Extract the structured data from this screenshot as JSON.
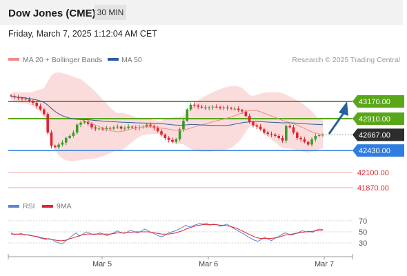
{
  "header": {
    "title": "Dow Jones (CME)",
    "timeframe": "30 MIN"
  },
  "datetime": "Friday, March 7, 2025 1:12:04 AM CET",
  "legend": {
    "ma20": "MA 20 + Bollinger Bands",
    "ma50": "MA 50",
    "source": "Research © 2025 Trading Central",
    "rsi": "RSI",
    "ma9": "9MA"
  },
  "colors": {
    "up": "#3a9b2a",
    "down": "#e0242c",
    "ma20": "#f08a8a",
    "ma50": "#2a5f9e",
    "bb_fill": "#fbdcdc",
    "resistance": "#5aa619",
    "support": "#2f7de1",
    "lower_level": "#f2a0a0",
    "arrow": "#2a5f9e",
    "current": "#2d2d2d",
    "rsi": "#5a84d8",
    "rsi_ma": "#e0242c"
  },
  "chart_data": [
    {
      "type": "candlestick",
      "ylim": [
        41700,
        43370
      ],
      "x_ticks": [
        "Mar 5",
        "Mar 6",
        "Mar 7"
      ],
      "levels": [
        {
          "value": 43170,
          "label": "43170.00",
          "kind": "resistance"
        },
        {
          "value": 42910,
          "label": "42910.00",
          "kind": "resistance"
        },
        {
          "value": 42667,
          "label": "42667.00",
          "kind": "current"
        },
        {
          "value": 42430,
          "label": "42430.00",
          "kind": "support"
        },
        {
          "value": 42100,
          "label": "42100.00",
          "kind": "lower"
        },
        {
          "value": 41870,
          "label": "41870.00",
          "kind": "lower"
        }
      ],
      "close_series": [
        43250,
        43230,
        43220,
        43210,
        43200,
        43180,
        43150,
        43100,
        43050,
        42980,
        42700,
        42500,
        42480,
        42520,
        42550,
        42620,
        42650,
        42700,
        42820,
        42850,
        42870,
        42830,
        42780,
        42760,
        42760,
        42750,
        42770,
        42760,
        42780,
        42790,
        42760,
        42770,
        42790,
        42780,
        42770,
        42780,
        42790,
        42820,
        42800,
        42770,
        42720,
        42670,
        42620,
        42590,
        42560,
        42600,
        42750,
        42880,
        43050,
        43120,
        43110,
        43090,
        43080,
        43070,
        43080,
        43090,
        43085,
        43070,
        43080,
        43070,
        43060,
        43060,
        43040,
        43020,
        42950,
        42860,
        42810,
        42790,
        42750,
        42700,
        42680,
        42670,
        42650,
        42620,
        42580,
        42800,
        42780,
        42700,
        42620,
        42600,
        42560,
        42520,
        42600,
        42650,
        42660,
        42667
      ]
    },
    {
      "type": "line",
      "name": "RSI",
      "ylim": [
        0,
        100
      ],
      "y_ticks": [
        70,
        50,
        30
      ],
      "series": [
        {
          "name": "RSI",
          "values": [
            48,
            45,
            46,
            47,
            44,
            45,
            43,
            42,
            40,
            38,
            36,
            38,
            36,
            32,
            30,
            28,
            34,
            38,
            44,
            48,
            42,
            46,
            50,
            47,
            45,
            46,
            48,
            46,
            43,
            46,
            48,
            52,
            49,
            47,
            50,
            53,
            50,
            48,
            51,
            55,
            52,
            49,
            46,
            43,
            41,
            44,
            48,
            50,
            52,
            55,
            58,
            62,
            59,
            61,
            63,
            65,
            64,
            66,
            62,
            64,
            63,
            60,
            62,
            64,
            60,
            56,
            53,
            49,
            46,
            42,
            38,
            35,
            33,
            36,
            40,
            37,
            34,
            38,
            41,
            45,
            48,
            46,
            44,
            47,
            49,
            52,
            50,
            51,
            49,
            53,
            55,
            54
          ]
        },
        {
          "name": "9MA",
          "values": [
            46,
            46,
            46,
            45,
            45,
            44,
            43,
            42,
            41,
            39,
            38,
            37,
            36,
            35,
            34,
            34,
            35,
            37,
            39,
            41,
            43,
            45,
            46,
            46,
            46,
            46,
            46,
            46,
            46,
            46,
            47,
            48,
            48,
            48,
            49,
            49,
            50,
            50,
            50,
            50,
            50,
            49,
            48,
            47,
            46,
            46,
            46,
            47,
            48,
            50,
            52,
            55,
            57,
            59,
            61,
            62,
            63,
            63,
            63,
            63,
            63,
            62,
            62,
            61,
            60,
            58,
            56,
            53,
            50,
            47,
            44,
            41,
            39,
            38,
            38,
            38,
            38,
            39,
            40,
            42,
            44,
            45,
            46,
            47,
            48,
            49,
            50,
            50,
            51,
            52,
            53,
            53
          ]
        }
      ]
    }
  ]
}
